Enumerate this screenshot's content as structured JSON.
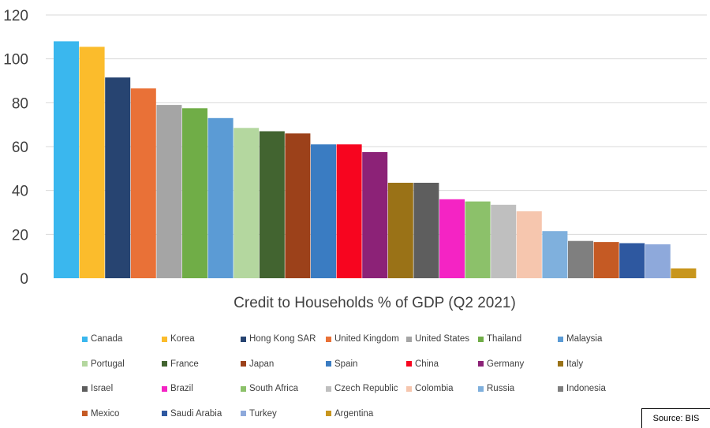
{
  "chart_data": {
    "type": "bar",
    "title": "Credit to Households % of GDP (Q2 2021)",
    "xlabel": "",
    "ylabel": "",
    "ylim": [
      0,
      120
    ],
    "yticks": [
      "0",
      "20",
      "40",
      "60",
      "80",
      "100",
      "120"
    ],
    "grid": true,
    "legend_position": "bottom",
    "categories": [
      "Canada",
      "Korea",
      "Hong Kong SAR",
      "United Kingdom",
      "United States",
      "Thailand",
      "Malaysia",
      "Portugal",
      "France",
      "Japan",
      "Spain",
      "China",
      "Germany",
      "Italy",
      "Israel",
      "Brazil",
      "South Africa",
      "Czech Republic",
      "Colombia",
      "Russia",
      "Indonesia",
      "Mexico",
      "Saudi Arabia",
      "Turkey",
      "Argentina"
    ],
    "values": [
      108,
      105.5,
      91.5,
      86.5,
      79,
      77.5,
      73,
      68.5,
      67,
      66,
      61,
      61,
      57.5,
      43.5,
      43.5,
      36,
      35,
      33.5,
      30.5,
      21.5,
      17,
      16.5,
      16,
      15.5,
      4.5
    ],
    "colors": [
      "#3AB7EE",
      "#FBBC2C",
      "#274471",
      "#E97137",
      "#A5A5A5",
      "#70AD47",
      "#5B9BD5",
      "#B4D79F",
      "#426430",
      "#9C411A",
      "#3A7CC2",
      "#F7051F",
      "#8C2277",
      "#9A7217",
      "#5E5E5E",
      "#F424C4",
      "#8CC16A",
      "#BFBFBF",
      "#F6C6AE",
      "#7FB0DD",
      "#7F7F7F",
      "#C55A24",
      "#2E58A0",
      "#8EA9DB",
      "#C8961D"
    ]
  },
  "source": "Source: BIS"
}
